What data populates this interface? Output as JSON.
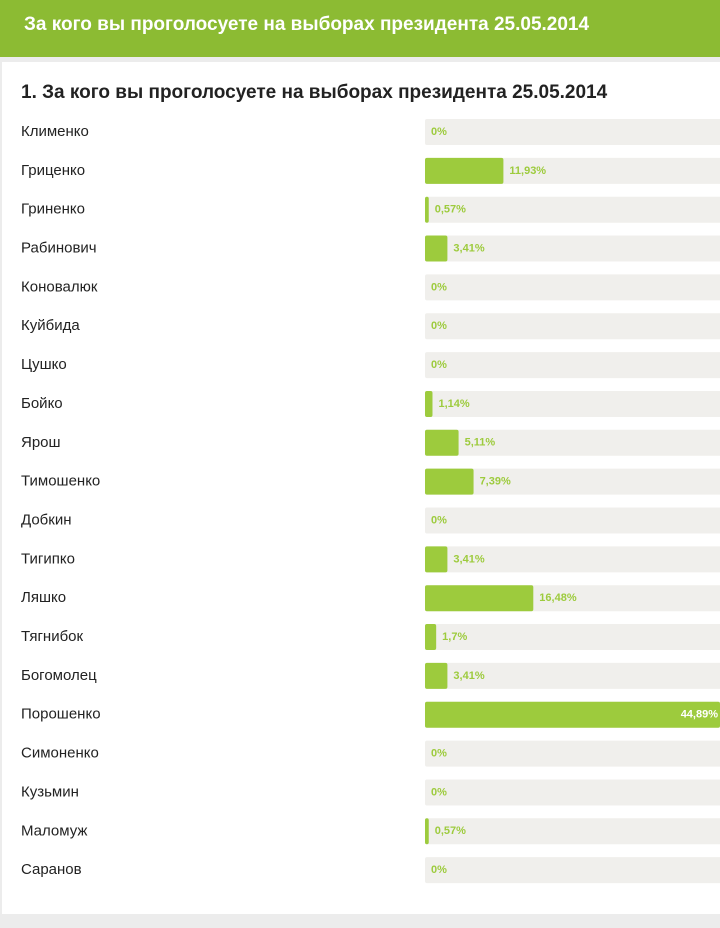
{
  "header": {
    "title": "За кого вы проголосуете на выборах президента 25.05.2014"
  },
  "chart_data": {
    "type": "bar",
    "orientation": "horizontal",
    "title": "1. За кого вы проголосуете на выборах президента 25.05.2014",
    "categories": [
      "Клименко",
      "Гриценко",
      "Гриненко",
      "Рабинович",
      "Коновалюк",
      "Куйбида",
      "Цушко",
      "Бойко",
      "Ярош",
      "Тимошенко",
      "Добкин",
      "Тигипко",
      "Ляшко",
      "Тягнибок",
      "Богомолец",
      "Порошенко",
      "Симоненко",
      "Кузьмин",
      "Маломуж",
      "Саранов"
    ],
    "values": [
      0,
      11.93,
      0.57,
      3.41,
      0,
      0,
      0,
      1.14,
      5.11,
      7.39,
      0,
      3.41,
      16.48,
      1.7,
      3.41,
      44.89,
      0,
      0,
      0.57,
      0
    ],
    "value_labels": [
      "0%",
      "11,93%",
      "0,57%",
      "3,41%",
      "0%",
      "0%",
      "0%",
      "1,14%",
      "5,11%",
      "7,39%",
      "0%",
      "3,41%",
      "16,48%",
      "1,7%",
      "3,41%",
      "44,89%",
      "0%",
      "0%",
      "0,57%",
      "0%"
    ],
    "color": "#9dcb3d"
  }
}
